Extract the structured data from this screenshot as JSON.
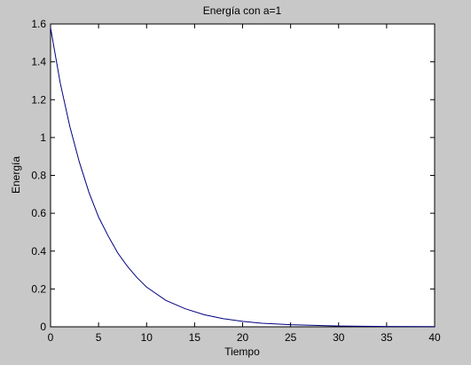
{
  "figure": {
    "background": "#c8c8c8"
  },
  "chart_data": {
    "type": "line",
    "title": "Energía con a=1",
    "xlabel": "Tiempo",
    "ylabel": "Energía",
    "xlim": [
      0,
      40
    ],
    "ylim": [
      0,
      1.6
    ],
    "grid": false,
    "legend": "none",
    "x_ticks": [
      "0",
      "5",
      "10",
      "15",
      "20",
      "25",
      "30",
      "35",
      "40"
    ],
    "y_ticks": [
      "0",
      "0.2",
      "0.4",
      "0.6",
      "0.8",
      "1",
      "1.2",
      "1.4",
      "1.6"
    ],
    "series": [
      {
        "color": "#00007f",
        "x": [
          0,
          1,
          2,
          3,
          4,
          5,
          6,
          7,
          8,
          9,
          10,
          12,
          14,
          16,
          18,
          20,
          22,
          25,
          30,
          35,
          40
        ],
        "y": [
          1.58,
          1.29,
          1.06,
          0.87,
          0.71,
          0.58,
          0.48,
          0.39,
          0.32,
          0.26,
          0.21,
          0.14,
          0.096,
          0.064,
          0.043,
          0.029,
          0.019,
          0.011,
          0.004,
          0.002,
          0.001
        ]
      }
    ]
  }
}
